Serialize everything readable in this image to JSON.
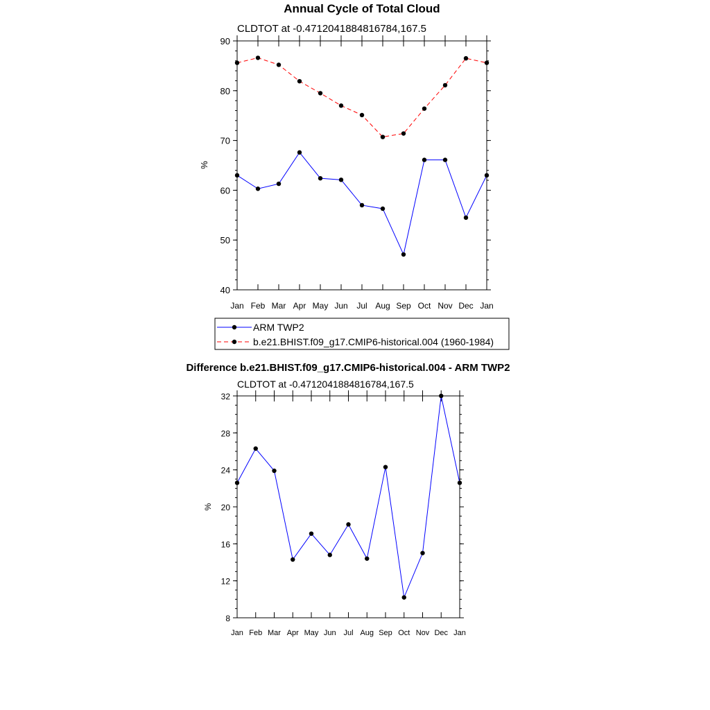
{
  "chart_data": [
    {
      "type": "line",
      "title": "Annual Cycle of Total Cloud",
      "subtitle": "CLDTOT at -0.4712041884816784,167.5",
      "xlabel": "",
      "ylabel": "%",
      "categories": [
        "Jan",
        "Feb",
        "Mar",
        "Apr",
        "May",
        "Jun",
        "Jul",
        "Aug",
        "Sep",
        "Oct",
        "Nov",
        "Dec",
        "Jan"
      ],
      "ylim": [
        40,
        90
      ],
      "yticks": [
        40,
        50,
        60,
        70,
        80,
        90
      ],
      "series": [
        {
          "name": "ARM TWP2",
          "color": "#0000ff",
          "dash": "solid",
          "values": [
            63.0,
            60.3,
            61.3,
            67.6,
            62.4,
            62.1,
            57.0,
            56.3,
            47.1,
            66.1,
            66.1,
            54.5,
            63.0
          ]
        },
        {
          "name": "b.e21.BHIST.f09_g17.CMIP6-historical.004 (1960-1984)",
          "color": "#ff0000",
          "dash": "dashed",
          "values": [
            85.6,
            86.6,
            85.2,
            81.9,
            79.5,
            77.0,
            75.1,
            70.7,
            71.4,
            76.4,
            81.1,
            86.5,
            85.6
          ]
        }
      ],
      "legend_position": "bottom"
    },
    {
      "type": "line",
      "title": "Difference b.e21.BHIST.f09_g17.CMIP6-historical.004 - ARM TWP2",
      "subtitle": "CLDTOT at -0.4712041884816784,167.5",
      "xlabel": "",
      "ylabel": "%",
      "categories": [
        "Jan",
        "Feb",
        "Mar",
        "Apr",
        "May",
        "Jun",
        "Jul",
        "Aug",
        "Sep",
        "Oct",
        "Nov",
        "Dec",
        "Jan"
      ],
      "ylim": [
        8,
        32
      ],
      "yticks": [
        8,
        12,
        16,
        20,
        24,
        28,
        32
      ],
      "series": [
        {
          "color": "#0000ff",
          "dash": "solid",
          "values": [
            22.6,
            26.3,
            23.9,
            14.3,
            17.1,
            14.8,
            18.1,
            14.4,
            24.3,
            10.2,
            15.0,
            32.0,
            22.6
          ]
        }
      ]
    }
  ]
}
